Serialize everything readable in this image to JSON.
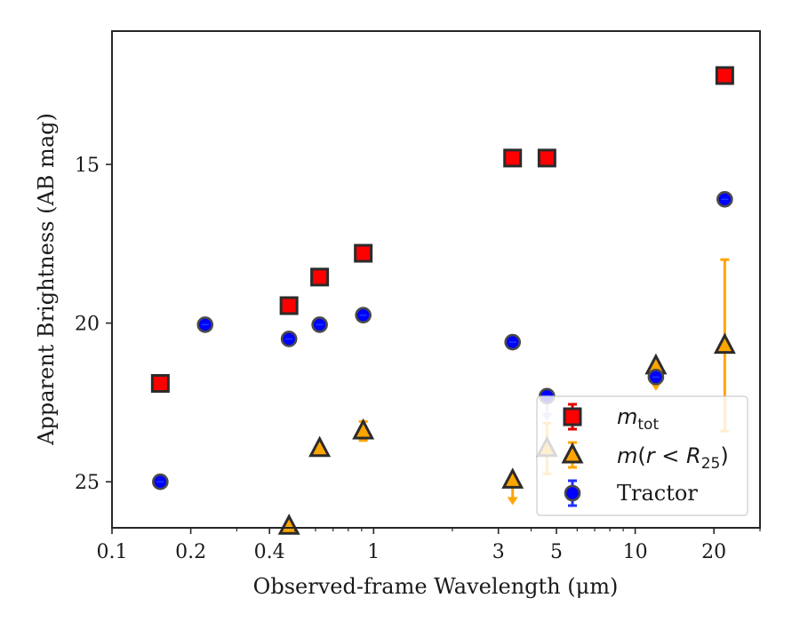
{
  "chart_data": {
    "type": "scatter",
    "xlabel": "Observed-frame Wavelength (μm)",
    "ylabel": "Apparent Brightness (AB mag)",
    "x_scale": "log",
    "y_inverted": true,
    "xlim": [
      0.1,
      30
    ],
    "ylim": [
      26.45,
      10.8
    ],
    "x_ticks": [
      {
        "value": 0.1,
        "label": "0.1"
      },
      {
        "value": 0.2,
        "label": "0.2"
      },
      {
        "value": 0.4,
        "label": "0.4"
      },
      {
        "value": 1,
        "label": "1"
      },
      {
        "value": 3,
        "label": "3"
      },
      {
        "value": 5,
        "label": "5"
      },
      {
        "value": 10,
        "label": "10"
      },
      {
        "value": 20,
        "label": "20"
      }
    ],
    "y_ticks": [
      {
        "value": 15,
        "label": "15"
      },
      {
        "value": 20,
        "label": "20"
      },
      {
        "value": 25,
        "label": "25"
      }
    ],
    "grid": false,
    "legend_position": "bottom-right",
    "series": [
      {
        "name": "m_tot",
        "marker": "square",
        "color": "#ff0000",
        "points": [
          {
            "x": 0.153,
            "y": 21.9
          },
          {
            "x": 0.475,
            "y": 19.45
          },
          {
            "x": 0.622,
            "y": 18.55
          },
          {
            "x": 0.913,
            "y": 17.8
          },
          {
            "x": 3.4,
            "y": 14.8
          },
          {
            "x": 4.6,
            "y": 14.8
          },
          {
            "x": 22,
            "y": 12.2
          }
        ]
      },
      {
        "name": "m(r < R25)",
        "marker": "triangle",
        "color": "#ffa500",
        "points": [
          {
            "x": 0.475,
            "y": 26.4
          },
          {
            "x": 0.622,
            "y": 23.95
          },
          {
            "x": 0.913,
            "y": 23.4,
            "err": 0.3
          },
          {
            "x": 3.4,
            "y": 24.95,
            "upper_limit": true
          },
          {
            "x": 4.6,
            "y": 23.95,
            "err": 0.8
          },
          {
            "x": 12,
            "y": 21.35,
            "upper_limit": true
          },
          {
            "x": 22,
            "y": 20.7,
            "err_low": 2.7,
            "err_high": 2.7
          }
        ]
      },
      {
        "name": "Tractor",
        "marker": "circle",
        "color": "#0000ff",
        "points": [
          {
            "x": 0.153,
            "y": 25.0
          },
          {
            "x": 0.227,
            "y": 20.05
          },
          {
            "x": 0.475,
            "y": 20.5
          },
          {
            "x": 0.622,
            "y": 20.05
          },
          {
            "x": 0.913,
            "y": 19.75
          },
          {
            "x": 3.4,
            "y": 20.6
          },
          {
            "x": 4.6,
            "y": 22.3,
            "upper_limit": true
          },
          {
            "x": 12,
            "y": 21.7
          },
          {
            "x": 22,
            "y": 16.1
          }
        ]
      }
    ],
    "legend": [
      {
        "marker": "square",
        "series": "m_tot"
      },
      {
        "marker": "triangle",
        "series": "m(r < R25)"
      },
      {
        "marker": "circle",
        "series": "Tractor",
        "label": "Tractor"
      }
    ]
  }
}
